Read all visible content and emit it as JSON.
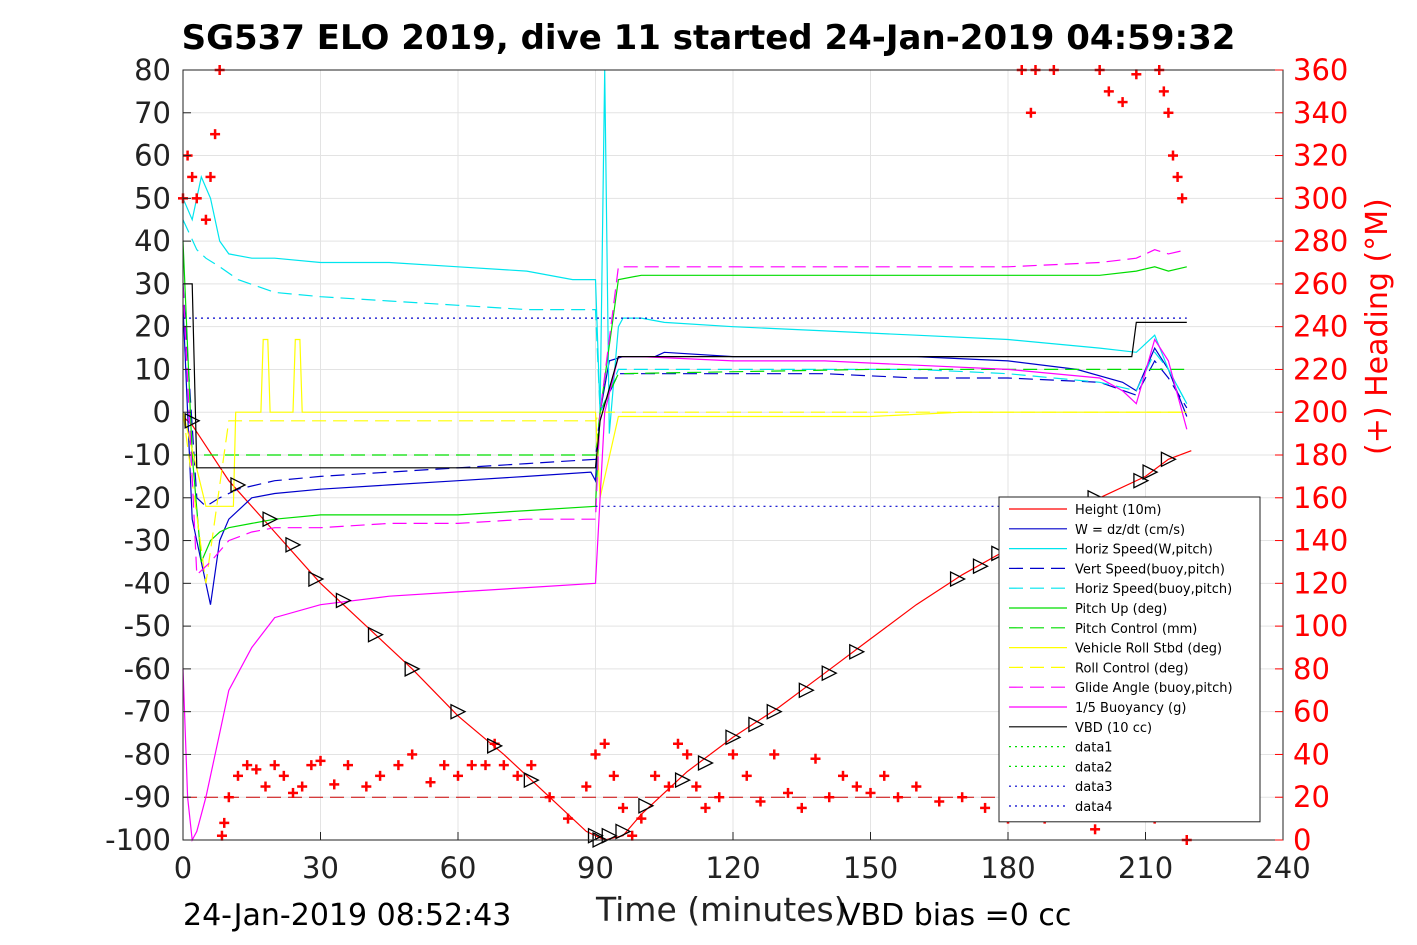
{
  "title": "SG537 ELO 2019, dive 11 started 24-Jan-2019 04:59:32",
  "footer": {
    "left": "24-Jan-2019 08:52:43",
    "right": "VBD bias =0 cc"
  },
  "chart_data": {
    "type": "line",
    "xlabel": "Time (minutes)",
    "ylabel_right": "(+) Heading (°M)",
    "xlim": [
      0,
      240
    ],
    "ylim": [
      -100,
      80
    ],
    "ylim_right": [
      0,
      360
    ],
    "xticks": [
      "0",
      "30",
      "60",
      "90",
      "120",
      "150",
      "180",
      "210",
      "240"
    ],
    "yticks": [
      "80",
      "70",
      "60",
      "50",
      "40",
      "30",
      "20",
      "10",
      "0",
      "-10",
      "-20",
      "-30",
      "-40",
      "-50",
      "-60",
      "-70",
      "-80",
      "-90",
      "-100"
    ],
    "yticks_right": [
      "360",
      "340",
      "320",
      "300",
      "280",
      "260",
      "240",
      "220",
      "200",
      "180",
      "160",
      "140",
      "120",
      "100",
      "80",
      "60",
      "40",
      "20",
      "0"
    ],
    "grid": true,
    "legend_position": "bottom-right",
    "series": [
      {
        "name": "Height (10m)",
        "color": "#ff0000",
        "style": "solid",
        "x": [
          0,
          2,
          10,
          20,
          30,
          40,
          50,
          60,
          70,
          80,
          88,
          92,
          96,
          100,
          110,
          120,
          130,
          140,
          150,
          160,
          170,
          180,
          190,
          200,
          210,
          215,
          220
        ],
        "y": [
          -1,
          -3,
          -16,
          -28,
          -40,
          -50,
          -60,
          -71,
          -80,
          -90,
          -98,
          -100,
          -99,
          -94,
          -84,
          -76,
          -69,
          -61,
          -53,
          -45,
          -38,
          -32,
          -26,
          -20,
          -15,
          -11,
          -9
        ]
      },
      {
        "name": "W = dz/dt (cm/s)",
        "color": "#0000cc",
        "style": "solid",
        "x": [
          0,
          2,
          4,
          6,
          8,
          10,
          15,
          20,
          30,
          45,
          60,
          75,
          89,
          90,
          91,
          93,
          96,
          103,
          105,
          120,
          140,
          160,
          180,
          195,
          205,
          208,
          212,
          215,
          219
        ],
        "y": [
          25,
          -25,
          -35,
          -45,
          -30,
          -25,
          -20,
          -19,
          -18,
          -17,
          -16,
          -15,
          -14,
          -16,
          0,
          12,
          13,
          13,
          14,
          13,
          13,
          13,
          12,
          10,
          7,
          5,
          15,
          10,
          -1
        ]
      },
      {
        "name": "Horiz Speed(W,pitch)",
        "color": "#00e5ee",
        "style": "solid",
        "x": [
          0,
          2,
          4,
          6,
          8,
          10,
          15,
          20,
          30,
          45,
          60,
          75,
          85,
          90,
          91,
          92,
          93,
          95,
          96,
          100,
          105,
          120,
          140,
          160,
          180,
          200,
          208,
          212,
          215,
          219
        ],
        "y": [
          50,
          45,
          55,
          50,
          40,
          37,
          36,
          36,
          35,
          35,
          34,
          33,
          31,
          31,
          0,
          80,
          -5,
          20,
          22,
          22,
          21,
          20,
          19,
          18,
          17,
          15,
          14,
          18,
          10,
          2
        ]
      },
      {
        "name": "Vert Speed(buoy,pitch)",
        "color": "#0000cc",
        "style": "dashed",
        "x": [
          0,
          3,
          5,
          8,
          12,
          20,
          30,
          45,
          60,
          75,
          90,
          91,
          95,
          100,
          120,
          140,
          160,
          180,
          200,
          208,
          212,
          215,
          219
        ],
        "y": [
          30,
          -20,
          -22,
          -20,
          -18,
          -16,
          -15,
          -14,
          -13,
          -12,
          -11,
          0,
          9,
          9,
          9,
          9,
          8,
          8,
          7,
          4,
          12,
          8,
          1
        ]
      },
      {
        "name": "Horiz Speed(buoy,pitch)",
        "color": "#00e5ee",
        "style": "dashed",
        "x": [
          0,
          3,
          5,
          8,
          12,
          20,
          30,
          45,
          60,
          75,
          90,
          91,
          95,
          100,
          120,
          140,
          160,
          180,
          200,
          208,
          212,
          215,
          219
        ],
        "y": [
          45,
          38,
          36,
          34,
          31,
          28,
          27,
          26,
          25,
          24,
          24,
          0,
          10,
          10,
          10,
          10,
          10,
          9,
          7,
          5,
          14,
          10,
          2
        ]
      },
      {
        "name": "Pitch Up (deg)",
        "color": "#00dd00",
        "style": "solid",
        "x": [
          0,
          2,
          4,
          6,
          8,
          10,
          15,
          20,
          30,
          45,
          60,
          75,
          90,
          91,
          95,
          100,
          120,
          140,
          160,
          180,
          200,
          208,
          212,
          215,
          219
        ],
        "y": [
          40,
          -10,
          -35,
          -30,
          -28,
          -27,
          -26,
          -25,
          -24,
          -24,
          -24,
          -23,
          -22,
          0,
          31,
          32,
          32,
          32,
          32,
          32,
          32,
          33,
          34,
          33,
          34
        ]
      },
      {
        "name": "Pitch Control (mm)",
        "color": "#00dd00",
        "style": "dashed",
        "x": [
          0,
          2,
          4,
          90,
          91,
          95,
          150,
          200,
          208,
          212,
          219
        ],
        "y": [
          -10,
          -10,
          -10,
          -10,
          0,
          9,
          10,
          10,
          10,
          10,
          10
        ]
      },
      {
        "name": "Vehicle Roll Stbd (deg)",
        "color": "#ffff00",
        "style": "solid",
        "x": [
          0,
          5,
          11,
          11.5,
          17,
          17.5,
          18.5,
          19,
          24,
          24.5,
          25.5,
          26,
          90,
          91,
          95,
          100,
          150,
          170,
          175,
          219
        ],
        "y": [
          0,
          -22,
          -22,
          0,
          0,
          17,
          17,
          0,
          0,
          17,
          17,
          0,
          0,
          -20,
          -1,
          -1,
          -1,
          0,
          0,
          0
        ]
      },
      {
        "name": "Roll Control (deg)",
        "color": "#ffff00",
        "style": "dashed",
        "x": [
          0,
          5,
          10,
          90,
          91,
          95,
          150,
          200,
          219
        ],
        "y": [
          0,
          -40,
          -2,
          -2,
          0,
          0,
          0,
          0,
          0
        ]
      },
      {
        "name": "Glide Angle (buoy,pitch)",
        "color": "#ff00ff",
        "style": "dashed",
        "x": [
          0,
          3,
          6,
          10,
          15,
          20,
          30,
          45,
          60,
          75,
          90,
          91,
          95,
          100,
          120,
          140,
          160,
          180,
          200,
          208,
          212,
          215,
          219
        ],
        "y": [
          30,
          -38,
          -35,
          -30,
          -28,
          -27,
          -27,
          -26,
          -26,
          -25,
          -25,
          0,
          34,
          34,
          34,
          34,
          34,
          34,
          35,
          36,
          38,
          37,
          38
        ]
      },
      {
        "name": "1/5 Buoyancy (g)",
        "color": "#ff00ff",
        "style": "solid",
        "x": [
          0,
          1,
          2,
          3,
          5,
          8,
          10,
          15,
          20,
          30,
          45,
          60,
          75,
          90,
          91,
          92,
          95,
          100,
          120,
          140,
          160,
          180,
          200,
          205,
          208,
          212,
          215,
          219
        ],
        "y": [
          -60,
          -90,
          -100,
          -98,
          -90,
          -75,
          -65,
          -55,
          -48,
          -45,
          -43,
          -42,
          -41,
          -40,
          -20,
          0,
          13,
          13,
          12,
          12,
          11,
          10,
          8,
          5,
          2,
          17,
          12,
          -4
        ]
      },
      {
        "name": "VBD (10 cc)",
        "color": "#000000",
        "style": "solid",
        "x": [
          0,
          2,
          3,
          90,
          91,
          95,
          120,
          150,
          180,
          207,
          208,
          219
        ],
        "y": [
          30,
          30,
          -13,
          -13,
          -2,
          13,
          13,
          13,
          13,
          13,
          21,
          21
        ]
      },
      {
        "name": "data1",
        "color": "#00dd00",
        "style": "dotted",
        "x": [],
        "y": []
      },
      {
        "name": "data2",
        "color": "#00dd00",
        "style": "dotted",
        "x": [],
        "y": []
      },
      {
        "name": "data3",
        "color": "#0000cc",
        "style": "dotted",
        "x": [
          0,
          219
        ],
        "y": [
          22,
          22
        ]
      },
      {
        "name": "data4",
        "color": "#0000cc",
        "style": "dotted",
        "x": [
          90,
          219
        ],
        "y": [
          -22,
          -22
        ]
      }
    ],
    "reference_line": {
      "y": -90,
      "color": "#cc0000",
      "style": "dashed",
      "x": [
        0,
        219
      ]
    },
    "heading": {
      "color": "#ff0000",
      "marker": "+",
      "axis": "right",
      "x": [
        0,
        1,
        2,
        3,
        5,
        6,
        7,
        8,
        8.5,
        9,
        10,
        12,
        14,
        16,
        18,
        20,
        22,
        24,
        26,
        28,
        30,
        33,
        36,
        40,
        43,
        47,
        50,
        54,
        57,
        60,
        63,
        66,
        68,
        70,
        73,
        76,
        80,
        84,
        88,
        90,
        92,
        94,
        96,
        98,
        100,
        103,
        106,
        108,
        110,
        112,
        114,
        117,
        120,
        123,
        126,
        129,
        132,
        135,
        138,
        141,
        144,
        147,
        150,
        153,
        156,
        160,
        165,
        170,
        175,
        180,
        183,
        185,
        186,
        188,
        190,
        193,
        196,
        199,
        200,
        202,
        205,
        208,
        210,
        212,
        213,
        214,
        215,
        216,
        217,
        218,
        219
      ],
      "y": [
        300,
        320,
        310,
        300,
        290,
        310,
        330,
        360,
        2,
        8,
        20,
        30,
        35,
        33,
        25,
        35,
        30,
        22,
        25,
        35,
        37,
        26,
        35,
        25,
        30,
        35,
        40,
        27,
        35,
        30,
        35,
        35,
        45,
        35,
        30,
        35,
        20,
        10,
        25,
        40,
        45,
        30,
        15,
        2,
        10,
        30,
        25,
        45,
        40,
        25,
        15,
        20,
        40,
        30,
        18,
        40,
        22,
        15,
        38,
        20,
        30,
        25,
        22,
        30,
        20,
        25,
        18,
        20,
        15,
        10,
        365,
        340,
        360,
        10,
        360,
        12,
        25,
        5,
        360,
        350,
        345,
        358,
        15,
        10,
        360,
        350,
        340,
        320,
        310,
        300,
        0
      ]
    },
    "markers": {
      "description": "triangles on Height trace at dive/climb samples",
      "x": [
        2,
        12,
        19,
        24,
        29,
        35,
        42,
        50,
        60,
        68,
        76,
        90,
        91,
        93,
        96,
        101,
        109,
        114,
        120,
        125,
        129,
        136,
        141,
        147,
        169,
        174,
        178,
        199,
        209,
        211,
        215
      ],
      "y": [
        -2,
        -17,
        -25,
        -31,
        -39,
        -44,
        -52,
        -60,
        -70,
        -78,
        -86,
        -99,
        -100,
        -99,
        -98,
        -92,
        -86,
        -82,
        -76,
        -73,
        -70,
        -65,
        -61,
        -56,
        -39,
        -36,
        -33,
        -20,
        -16,
        -14,
        -11
      ]
    }
  }
}
